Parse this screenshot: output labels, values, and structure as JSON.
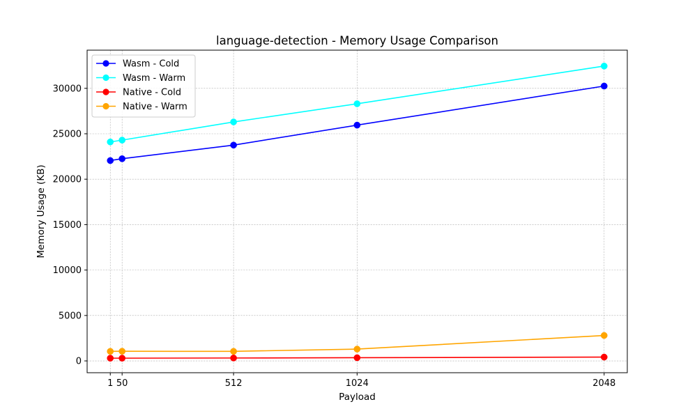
{
  "chart_data": {
    "type": "line",
    "title": "language-detection - Memory Usage Comparison",
    "xlabel": "Payload",
    "ylabel": "Memory Usage (KB)",
    "x": [
      1,
      50,
      512,
      1024,
      2048
    ],
    "x_tick_labels": [
      "1",
      "50",
      "512",
      "1024",
      "2048"
    ],
    "xlim": [
      -95,
      2144
    ],
    "ylim": [
      -1300,
      34200
    ],
    "y_ticks": [
      0,
      5000,
      10000,
      15000,
      20000,
      25000,
      30000
    ],
    "y_tick_labels": [
      "0",
      "5000",
      "10000",
      "15000",
      "20000",
      "25000",
      "30000"
    ],
    "grid": true,
    "legend_position": "upper-left",
    "series": [
      {
        "name": "Wasm - Cold",
        "color": "#0000ff",
        "marker": "circle",
        "values": [
          22050,
          22250,
          23750,
          25950,
          30250
        ]
      },
      {
        "name": "Wasm - Warm",
        "color": "#00ffff",
        "marker": "circle",
        "values": [
          24100,
          24300,
          26300,
          28300,
          32450
        ]
      },
      {
        "name": "Native - Cold",
        "color": "#ff0000",
        "marker": "circle",
        "values": [
          300,
          300,
          320,
          350,
          420
        ]
      },
      {
        "name": "Native - Warm",
        "color": "#ffa500",
        "marker": "circle",
        "values": [
          1050,
          1060,
          1050,
          1300,
          2800
        ]
      }
    ]
  }
}
